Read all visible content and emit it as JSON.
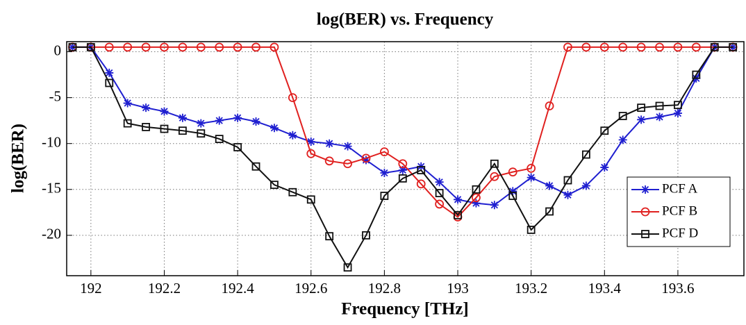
{
  "chart_data": {
    "type": "line",
    "title": "log(BER) vs. Frequency",
    "xlabel": "Frequency [THz]",
    "ylabel": "log(BER)",
    "x": [
      191.95,
      192,
      192.05,
      192.1,
      192.15,
      192.2,
      192.25,
      192.3,
      192.35,
      192.4,
      192.45,
      192.5,
      192.55,
      192.6,
      192.65,
      192.7,
      192.75,
      192.8,
      192.85,
      192.9,
      192.95,
      193,
      193.05,
      193.1,
      193.15,
      193.2,
      193.25,
      193.3,
      193.35,
      193.4,
      193.45,
      193.5,
      193.55,
      193.6,
      193.65,
      193.7,
      193.75
    ],
    "series": [
      {
        "name": "PCF A",
        "color": "#1f1fd0",
        "marker": "star",
        "values": [
          0.5,
          0.5,
          -2.3,
          -5.6,
          -6.1,
          -6.5,
          -7.2,
          -7.8,
          -7.5,
          -7.2,
          -7.6,
          -8.3,
          -9.1,
          -9.8,
          -10.0,
          -10.3,
          -11.8,
          -13.2,
          -12.9,
          -12.5,
          -14.2,
          -16.1,
          -16.5,
          -16.7,
          -15.2,
          -13.7,
          -14.6,
          -15.6,
          -14.6,
          -12.6,
          -9.6,
          -7.4,
          -7.1,
          -6.7,
          -2.9,
          0.5,
          0.5
        ]
      },
      {
        "name": "PCF B",
        "color": "#e0201f",
        "marker": "circle",
        "values": [
          0.5,
          0.5,
          0.5,
          0.5,
          0.5,
          0.5,
          0.5,
          0.5,
          0.5,
          0.5,
          0.5,
          0.5,
          -5.0,
          -11.1,
          -11.9,
          -12.2,
          -11.6,
          -10.9,
          -12.2,
          -14.4,
          -16.6,
          -18.0,
          -15.9,
          -13.6,
          -13.1,
          -12.7,
          -5.9,
          0.5,
          0.5,
          0.5,
          0.5,
          0.5,
          0.5,
          0.5,
          0.5,
          0.5,
          0.5
        ]
      },
      {
        "name": "PCF D",
        "color": "#111111",
        "marker": "square",
        "values": [
          0.5,
          0.5,
          -3.4,
          -7.8,
          -8.2,
          -8.4,
          -8.6,
          -8.9,
          -9.5,
          -10.4,
          -12.5,
          -14.5,
          -15.3,
          -16.1,
          -20.1,
          -23.5,
          -20.0,
          -15.7,
          -13.8,
          -12.9,
          -15.4,
          -17.8,
          -15.0,
          -12.2,
          -15.7,
          -19.4,
          -17.4,
          -14.0,
          -11.2,
          -8.6,
          -7.0,
          -6.1,
          -5.9,
          -5.8,
          -2.5,
          0.5,
          0.5
        ]
      }
    ],
    "xlim": [
      191.934,
      193.78
    ],
    "ylim": [
      -24.4,
      1.1
    ],
    "xticks": [
      192,
      192.2,
      192.4,
      192.6,
      192.8,
      193,
      193.2,
      193.4,
      193.6
    ],
    "yticks": [
      0,
      -5,
      -10,
      -15,
      -20
    ],
    "grid": true,
    "legend": "lower right"
  }
}
